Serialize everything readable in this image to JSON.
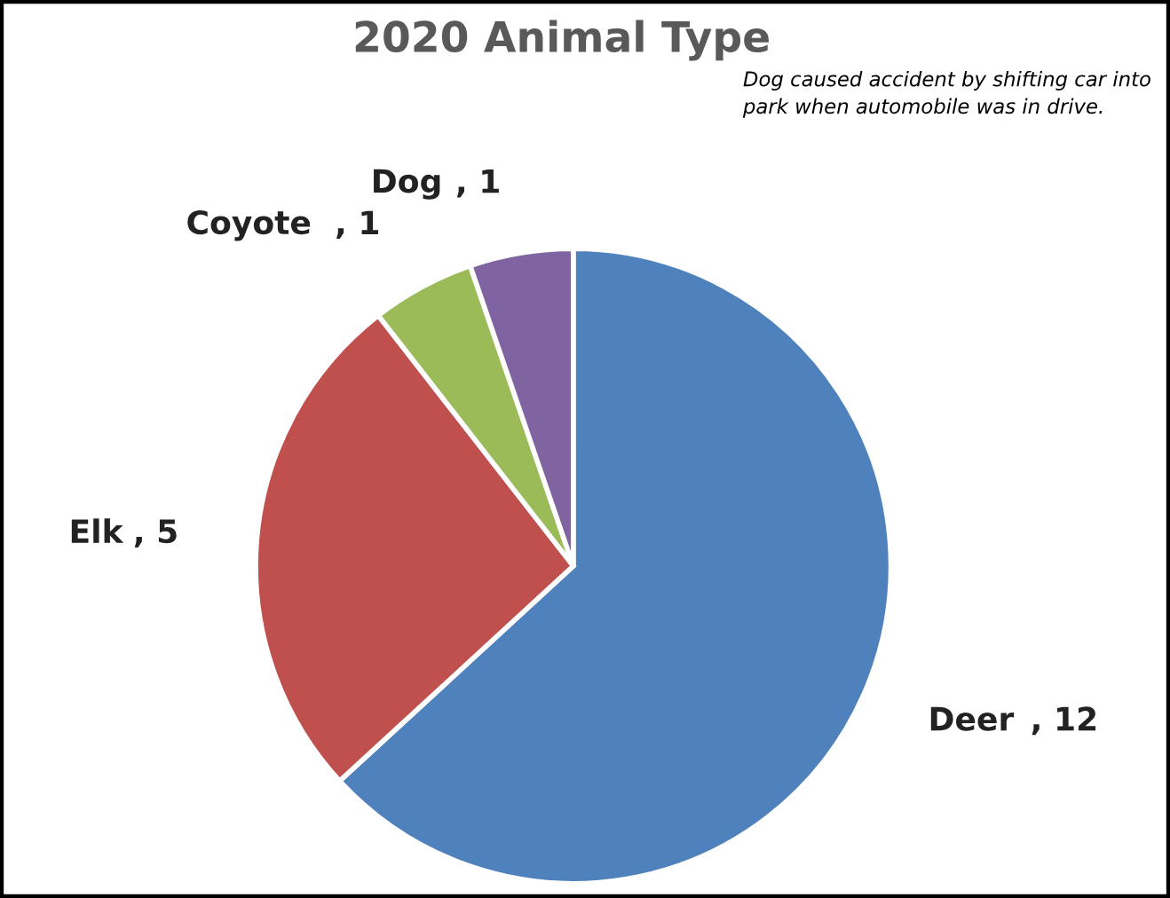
{
  "chart_data": {
    "type": "pie",
    "title": "2020 Animal Type",
    "categories": [
      "Deer",
      "Elk",
      "Coyote",
      "Dog"
    ],
    "values": [
      12,
      5,
      1,
      1
    ],
    "colors": [
      "#4f81bd",
      "#c0504d",
      "#9bbb59",
      "#8064a2"
    ],
    "value_labels": [
      ", 12",
      ", 5",
      ", 1",
      ", 1"
    ],
    "annotations": [
      "Dog caused accident by shifting car into\npark when automobile was in drive."
    ],
    "legend": false
  }
}
